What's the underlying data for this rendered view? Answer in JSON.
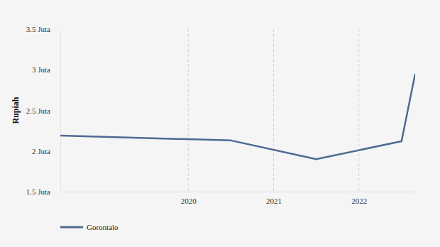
{
  "chart_data": {
    "type": "line",
    "y_label": "Rupiah",
    "x": [
      2018.5,
      2019.5,
      2020.5,
      2021.5,
      2022.5,
      2022.66
    ],
    "series": [
      {
        "name": "Gorontalo",
        "color": "#4e6a93",
        "values": [
          2.19,
          2.16,
          2.13,
          1.9,
          2.12,
          2.95
        ]
      }
    ],
    "xlim": [
      2018.5,
      2022.66
    ],
    "xticks": [
      2020,
      2021,
      2022
    ],
    "ylim": [
      1.5,
      3.5
    ],
    "yticks": [
      {
        "value": 1.5,
        "label": "1.5 Juta"
      },
      {
        "value": 2,
        "label": "2 Juta"
      },
      {
        "value": 2.5,
        "label": "2.5 Juta"
      },
      {
        "value": 3,
        "label": "3 Juta"
      },
      {
        "value": 3.5,
        "label": "3.5 Juta"
      }
    ],
    "grid": true,
    "legend": "bottom"
  }
}
